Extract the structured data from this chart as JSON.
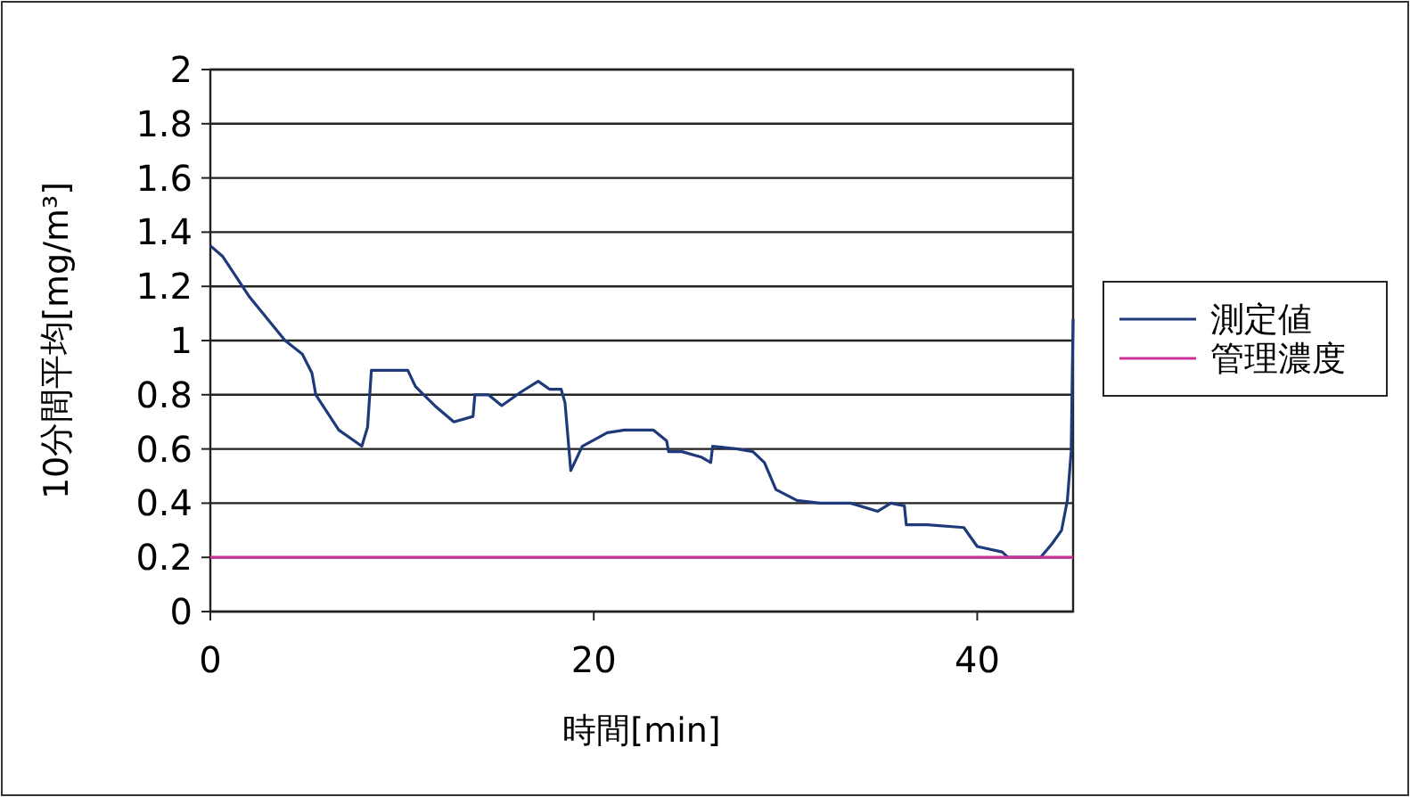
{
  "chart_data": {
    "type": "line",
    "xlabel": "時間[min]",
    "ylabel": "10分間平均[mg/m³]",
    "xlim": [
      0,
      45
    ],
    "xticks": [
      0,
      20,
      40
    ],
    "ylim": [
      0,
      2
    ],
    "yticks": [
      0,
      {
        "value": 0.2,
        "label": "0.2"
      },
      {
        "value": 0.4,
        "label": "0.4"
      },
      {
        "value": 0.6,
        "label": "0.6"
      },
      {
        "value": 0.8,
        "label": "0.8"
      },
      1,
      {
        "value": 1.2,
        "label": "1.2"
      },
      {
        "value": 1.4,
        "label": "1.4"
      },
      {
        "value": 1.6,
        "label": "1.6"
      },
      {
        "value": 1.8,
        "label": "1.8"
      },
      2
    ],
    "grid": "y",
    "legend": "right",
    "marker": "none",
    "line_style": "solid",
    "series": [
      {
        "name": "測定値",
        "color": "#1f3a7a",
        "x": [
          0,
          0.65,
          2.05,
          3.9,
          4.8,
          5.3,
          5.5,
          6.7,
          7.9,
          8.2,
          8.4,
          9.4,
          10.3,
          10.7,
          11.7,
          12.7,
          13.7,
          13.8,
          14.5,
          15.2,
          16.2,
          17.1,
          17.7,
          18.3,
          18.5,
          18.8,
          19.4,
          20.7,
          21.6,
          23.1,
          23.8,
          23.9,
          24.6,
          25.6,
          26.1,
          26.2,
          27.5,
          28.3,
          28.9,
          29.5,
          30.6,
          31.8,
          33.4,
          34.8,
          35.5,
          36.2,
          36.3,
          37.4,
          39.3,
          40.0,
          41.3,
          41.6,
          43.3,
          43.9,
          44.4,
          44.7,
          44.9,
          45.0
        ],
        "values": [
          1.35,
          1.31,
          1.16,
          1.0,
          0.95,
          0.88,
          0.8,
          0.67,
          0.61,
          0.68,
          0.89,
          0.89,
          0.89,
          0.83,
          0.76,
          0.7,
          0.72,
          0.8,
          0.8,
          0.76,
          0.81,
          0.85,
          0.82,
          0.82,
          0.77,
          0.52,
          0.61,
          0.66,
          0.67,
          0.67,
          0.63,
          0.59,
          0.59,
          0.57,
          0.55,
          0.61,
          0.6,
          0.59,
          0.55,
          0.45,
          0.41,
          0.4,
          0.4,
          0.37,
          0.4,
          0.39,
          0.32,
          0.32,
          0.31,
          0.24,
          0.22,
          0.2,
          0.2,
          0.25,
          0.3,
          0.41,
          0.59,
          1.08
        ]
      },
      {
        "name": "管理濃度",
        "color": "#cc3399",
        "x": [
          0,
          45
        ],
        "values": [
          0.2,
          0.2
        ]
      }
    ]
  }
}
